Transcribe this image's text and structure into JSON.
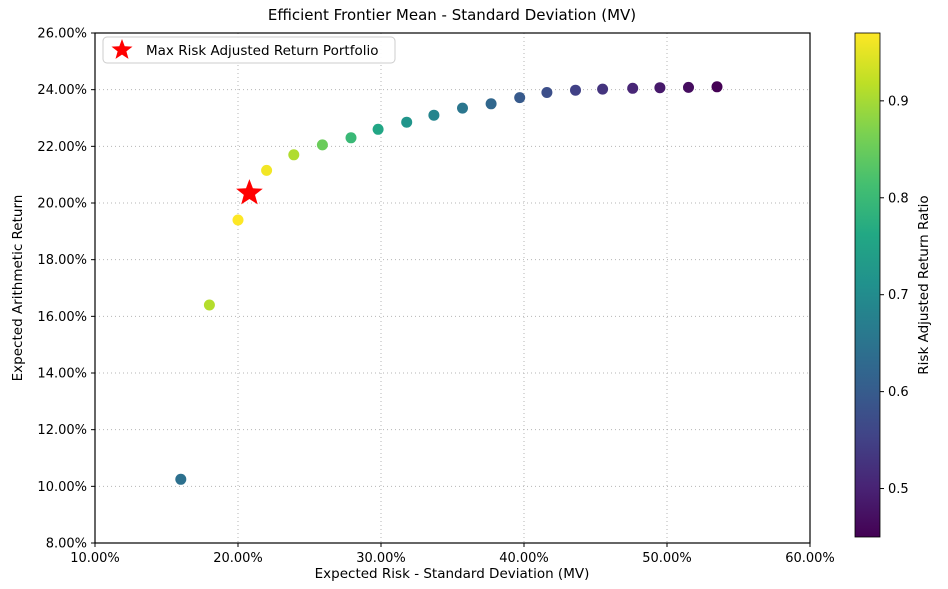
{
  "figure": {
    "title": "Efficient Frontier Mean - Standard Deviation (MV)"
  },
  "chart_data": {
    "type": "scatter",
    "title": "Efficient Frontier Mean - Standard Deviation (MV)",
    "xlabel": "Expected Risk - Standard Deviation (MV)",
    "ylabel": "Expected Arithmetic Return",
    "xlim": [
      10,
      60
    ],
    "ylim": [
      8,
      26
    ],
    "grid": true,
    "x_ticks": [
      {
        "value": 10,
        "label": "10.00%"
      },
      {
        "value": 20,
        "label": "20.00%"
      },
      {
        "value": 30,
        "label": "30.00%"
      },
      {
        "value": 40,
        "label": "40.00%"
      },
      {
        "value": 50,
        "label": "50.00%"
      },
      {
        "value": 60,
        "label": "60.00%"
      }
    ],
    "y_ticks": [
      {
        "value": 8,
        "label": "8.00%"
      },
      {
        "value": 10,
        "label": "10.00%"
      },
      {
        "value": 12,
        "label": "12.00%"
      },
      {
        "value": 14,
        "label": "14.00%"
      },
      {
        "value": 16,
        "label": "16.00%"
      },
      {
        "value": 18,
        "label": "18.00%"
      },
      {
        "value": 20,
        "label": "20.00%"
      },
      {
        "value": 22,
        "label": "22.00%"
      },
      {
        "value": 24,
        "label": "24.00%"
      },
      {
        "value": 26,
        "label": "26.00%"
      }
    ],
    "points": [
      {
        "risk_pct": 16.0,
        "return_pct": 10.25,
        "ratio": 0.641
      },
      {
        "risk_pct": 18.0,
        "return_pct": 16.4,
        "ratio": 0.911
      },
      {
        "risk_pct": 20.0,
        "return_pct": 19.4,
        "ratio": 0.97
      },
      {
        "risk_pct": 22.0,
        "return_pct": 21.15,
        "ratio": 0.961
      },
      {
        "risk_pct": 23.9,
        "return_pct": 21.7,
        "ratio": 0.908
      },
      {
        "risk_pct": 25.9,
        "return_pct": 22.05,
        "ratio": 0.851
      },
      {
        "risk_pct": 27.9,
        "return_pct": 22.3,
        "ratio": 0.799
      },
      {
        "risk_pct": 29.8,
        "return_pct": 22.6,
        "ratio": 0.758
      },
      {
        "risk_pct": 31.8,
        "return_pct": 22.85,
        "ratio": 0.719
      },
      {
        "risk_pct": 33.7,
        "return_pct": 23.1,
        "ratio": 0.686
      },
      {
        "risk_pct": 35.7,
        "return_pct": 23.35,
        "ratio": 0.654
      },
      {
        "risk_pct": 37.7,
        "return_pct": 23.5,
        "ratio": 0.623
      },
      {
        "risk_pct": 39.7,
        "return_pct": 23.72,
        "ratio": 0.597
      },
      {
        "risk_pct": 41.6,
        "return_pct": 23.9,
        "ratio": 0.575
      },
      {
        "risk_pct": 43.6,
        "return_pct": 23.98,
        "ratio": 0.55
      },
      {
        "risk_pct": 45.5,
        "return_pct": 24.02,
        "ratio": 0.528
      },
      {
        "risk_pct": 47.6,
        "return_pct": 24.05,
        "ratio": 0.505
      },
      {
        "risk_pct": 49.5,
        "return_pct": 24.07,
        "ratio": 0.486
      },
      {
        "risk_pct": 51.5,
        "return_pct": 24.08,
        "ratio": 0.468
      },
      {
        "risk_pct": 53.5,
        "return_pct": 24.1,
        "ratio": 0.45
      }
    ],
    "max_ratio_portfolio": {
      "risk_pct": 20.8,
      "return_pct": 20.35,
      "ratio": 0.978,
      "marker": "star",
      "color": "#ff0000"
    },
    "legend": {
      "position": "upper left",
      "entries": [
        {
          "label": "Max Risk Adjusted Return Portfolio",
          "marker": "star",
          "color": "#ff0000"
        }
      ]
    },
    "colorbar": {
      "label": "Risk Adjusted Return Ratio",
      "colormap": "viridis",
      "vmin": 0.45,
      "vmax": 0.97,
      "ticks": [
        {
          "value": 0.5,
          "label": "0.5"
        },
        {
          "value": 0.6,
          "label": "0.6"
        },
        {
          "value": 0.7,
          "label": "0.7"
        },
        {
          "value": 0.8,
          "label": "0.8"
        },
        {
          "value": 0.9,
          "label": "0.9"
        }
      ]
    }
  },
  "colors": {
    "star": "#ff0000",
    "grid": "#b5b5b5",
    "frame": "#000000",
    "text": "#000000",
    "legend_border": "#cccccc",
    "background": "#ffffff"
  }
}
